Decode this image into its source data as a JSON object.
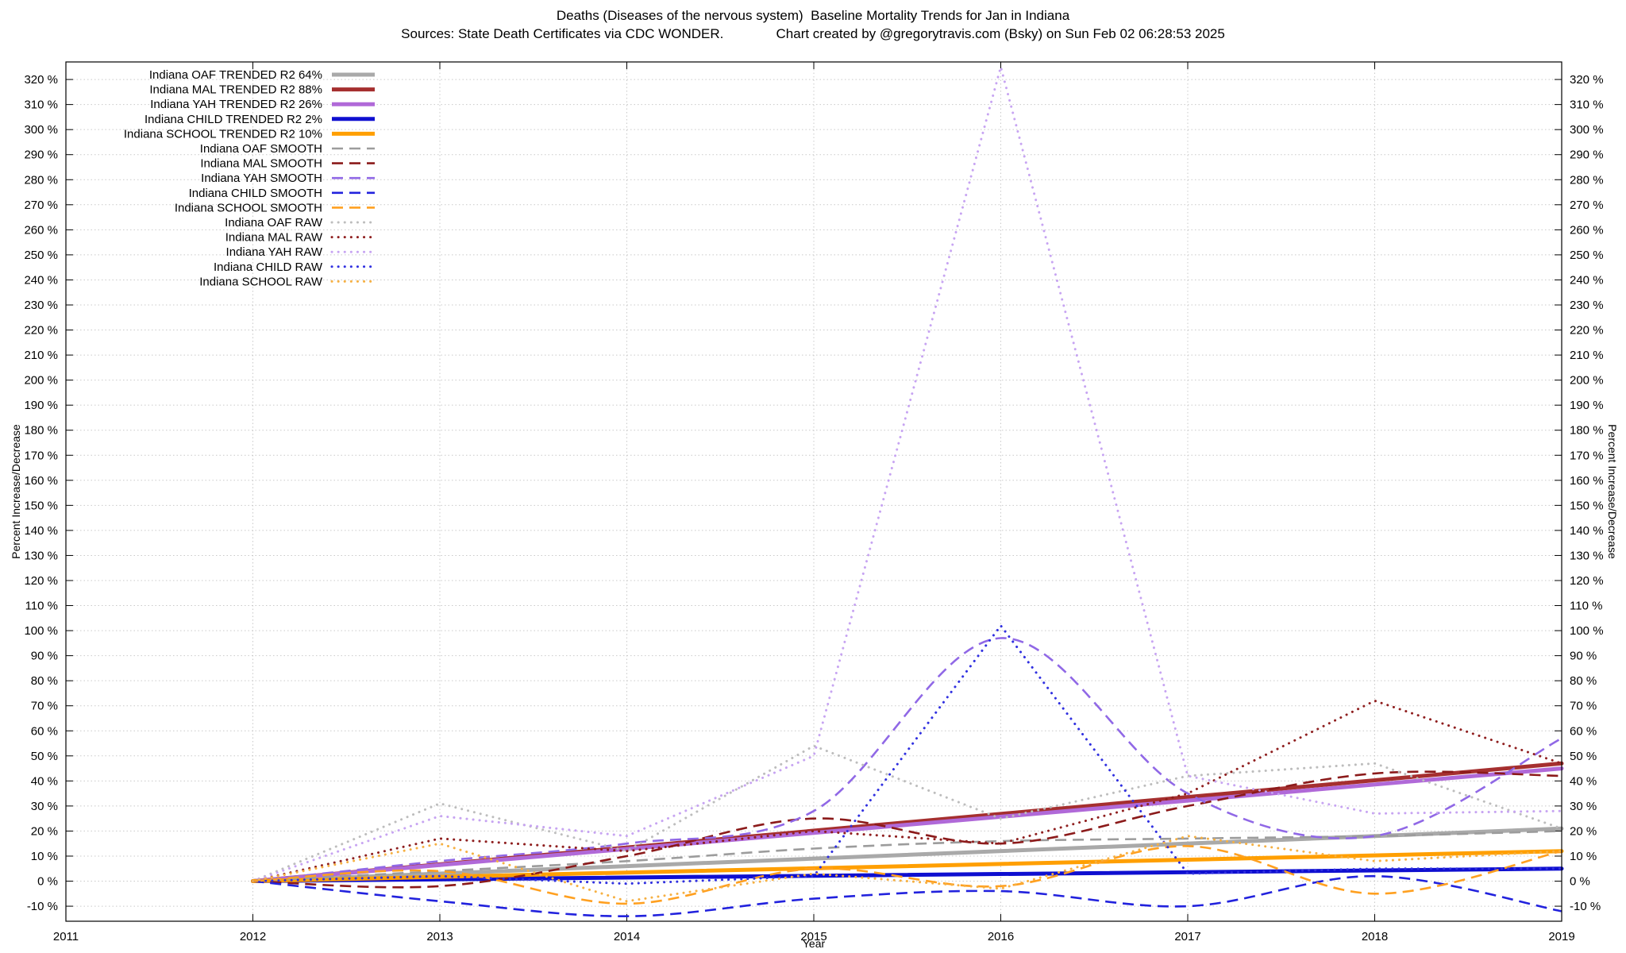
{
  "chart_data": {
    "type": "line",
    "title": "Deaths (Diseases of the nervous system)  Baseline Mortality Trends for Jan in Indiana",
    "subtitle": "Sources: State Death Certificates via CDC WONDER.              Chart created by @gregorytravis.com (Bsky) on Sun Feb 02 06:28:53 2025",
    "xlabel": "Year",
    "ylabel": "Percent Increase/Decrease",
    "xlim": [
      2011,
      2019
    ],
    "ylim": [
      -16,
      327
    ],
    "xticks": [
      2011,
      2012,
      2013,
      2014,
      2015,
      2016,
      2017,
      2018,
      2019
    ],
    "yticks": {
      "min": -10,
      "max": 320,
      "step": 10,
      "suffix": " %"
    },
    "grid": true,
    "legend_position": "top-left",
    "colors": {
      "axis": "#000000",
      "grid": "#c9c9c9",
      "background": "#ffffff"
    },
    "series": [
      {
        "name": "oaf-trended",
        "label": "Indiana OAF TRENDED R2  64%",
        "r2": "64%",
        "color": "#a9a9a9",
        "style": "solid",
        "width": 5,
        "smooth": false,
        "x": [
          2012,
          2019
        ],
        "y": [
          0,
          21
        ]
      },
      {
        "name": "mal-trended",
        "label": "Indiana MAL TRENDED R2  88%",
        "r2": "88%",
        "color": "#a52f2f",
        "style": "solid",
        "width": 5,
        "smooth": false,
        "x": [
          2012,
          2019
        ],
        "y": [
          0,
          47
        ]
      },
      {
        "name": "yah-trended",
        "label": "Indiana YAH TRENDED R2  26%",
        "r2": "26%",
        "color": "#b069d8",
        "style": "solid",
        "width": 5,
        "smooth": false,
        "x": [
          2012,
          2019
        ],
        "y": [
          0,
          45
        ]
      },
      {
        "name": "child-trended",
        "label": "Indiana CHILD TRENDED R2   2%",
        "r2": "2%",
        "color": "#0f0fd0",
        "style": "solid",
        "width": 5,
        "smooth": false,
        "x": [
          2012,
          2019
        ],
        "y": [
          0,
          5
        ]
      },
      {
        "name": "school-trended",
        "label": "Indiana SCHOOL TRENDED R2  10%",
        "r2": "10%",
        "color": "#ff9f00",
        "style": "solid",
        "width": 5,
        "smooth": false,
        "x": [
          2012,
          2019
        ],
        "y": [
          0,
          12
        ]
      },
      {
        "name": "oaf-smooth",
        "label": "Indiana OAF SMOOTH",
        "color": "#9c9c9c",
        "style": "dash",
        "width": 2.6,
        "smooth": true,
        "x": [
          2012,
          2013,
          2014,
          2015,
          2016,
          2017,
          2018,
          2019
        ],
        "y": [
          0,
          4,
          8,
          13,
          16,
          17,
          18,
          20
        ]
      },
      {
        "name": "mal-smooth",
        "label": "Indiana MAL SMOOTH",
        "color": "#8b1a1a",
        "style": "dash",
        "width": 2.6,
        "smooth": true,
        "x": [
          2012,
          2013,
          2014,
          2015,
          2016,
          2017,
          2018,
          2019
        ],
        "y": [
          0,
          -2,
          10,
          25,
          15,
          30,
          43,
          42
        ]
      },
      {
        "name": "yah-smooth",
        "label": "Indiana YAH SMOOTH",
        "color": "#9068e6",
        "style": "dash",
        "width": 2.6,
        "smooth": true,
        "x": [
          2012,
          2013,
          2014,
          2015,
          2016,
          2017,
          2018,
          2019
        ],
        "y": [
          0,
          8,
          15,
          28,
          97,
          35,
          18,
          57
        ]
      },
      {
        "name": "child-smooth",
        "label": "Indiana CHILD SMOOTH",
        "color": "#2222dd",
        "style": "dash",
        "width": 2.6,
        "smooth": true,
        "x": [
          2012,
          2013,
          2014,
          2015,
          2016,
          2017,
          2018,
          2019
        ],
        "y": [
          0,
          -8,
          -14,
          -7,
          -4,
          -10,
          2,
          -12
        ]
      },
      {
        "name": "school-smooth",
        "label": "Indiana SCHOOL SMOOTH",
        "color": "#ffa020",
        "style": "dash",
        "width": 2.6,
        "smooth": true,
        "x": [
          2012,
          2013,
          2014,
          2015,
          2016,
          2017,
          2018,
          2019
        ],
        "y": [
          0,
          4,
          -9,
          5,
          -2,
          14,
          -5,
          12
        ]
      },
      {
        "name": "oaf-raw",
        "label": "Indiana OAF RAW",
        "color": "#bdbdbd",
        "style": "dot",
        "width": 3,
        "smooth": false,
        "x": [
          2012,
          2013,
          2014,
          2015,
          2016,
          2017,
          2018,
          2019
        ],
        "y": [
          0,
          31,
          12,
          54,
          25,
          42,
          47,
          21
        ]
      },
      {
        "name": "mal-raw",
        "label": "Indiana MAL RAW",
        "color": "#8f1f1f",
        "style": "dot",
        "width": 3,
        "smooth": false,
        "x": [
          2012,
          2013,
          2014,
          2015,
          2016,
          2017,
          2018,
          2019
        ],
        "y": [
          0,
          17,
          12,
          20,
          15,
          35,
          72,
          47
        ]
      },
      {
        "name": "yah-raw",
        "label": "Indiana YAH RAW",
        "color": "#c7a4f2",
        "style": "dot",
        "width": 3,
        "smooth": false,
        "x": [
          2012,
          2013,
          2014,
          2015,
          2016,
          2017,
          2018,
          2019
        ],
        "y": [
          0,
          26,
          18,
          50,
          325,
          42,
          27,
          28
        ]
      },
      {
        "name": "child-raw",
        "label": "Indiana CHILD RAW",
        "color": "#3030e0",
        "style": "dot",
        "width": 3,
        "smooth": false,
        "x": [
          2012,
          2013,
          2014,
          2015,
          2016,
          2017,
          2018,
          2019
        ],
        "y": [
          0,
          2,
          -1,
          2,
          102,
          3,
          5,
          5
        ]
      },
      {
        "name": "school-raw",
        "label": "Indiana SCHOOL RAW",
        "color": "#f6b042",
        "style": "dot",
        "width": 3,
        "smooth": false,
        "x": [
          2012,
          2013,
          2014,
          2015,
          2016,
          2017,
          2018,
          2019
        ],
        "y": [
          0,
          15,
          -8,
          3,
          -3,
          18,
          8,
          12
        ]
      }
    ]
  }
}
